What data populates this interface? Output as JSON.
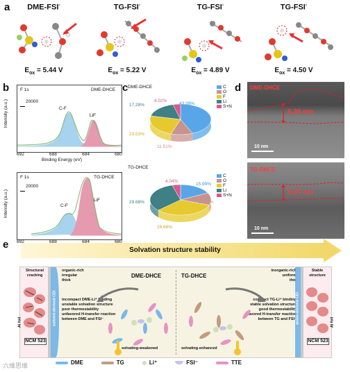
{
  "panel_labels": {
    "a": "a",
    "b": "b",
    "c": "c",
    "d": "d",
    "e": "e"
  },
  "panel_a": {
    "molecules": [
      {
        "title": "DME-FSI",
        "sup": "-",
        "eox_label": "E",
        "eox_sub": "ox",
        "eox_value": " = 5.44 V"
      },
      {
        "title": "TG-FSI",
        "sup": "-",
        "eox_label": "E",
        "eox_sub": "ox",
        "eox_value": " = 5.22 V"
      },
      {
        "title": "TG-FSI",
        "sup": "-",
        "eox_label": "E",
        "eox_sub": "ox",
        "eox_value": " = 4.89 V"
      },
      {
        "title": "TG-FSI",
        "sup": "-",
        "eox_label": "E",
        "eox_sub": "ox",
        "eox_value": " = 4.50 V"
      }
    ]
  },
  "panel_b": {
    "top": {
      "element": "F 1s",
      "sample": "DME-DHCE",
      "scale": "20000",
      "peak1": "C-F",
      "peak2": "LiF"
    },
    "bottom": {
      "element": "F 1s",
      "sample": "TG-DHCE",
      "scale": "20000",
      "peak1": "C-F",
      "peak2": "LiF"
    },
    "ylabel": "Intensity (a.u.)",
    "xlabel": "Binding Energy (eV)",
    "xticks": [
      "692",
      "688",
      "684",
      "680"
    ]
  },
  "chart_data": [
    {
      "type": "pie",
      "title": "DME-DHCE",
      "categories": [
        "C",
        "O",
        "F",
        "Li",
        "S+N"
      ],
      "values": [
        43.39,
        11.51,
        23.53,
        17.28,
        4.02
      ]
    },
    {
      "type": "pie",
      "title": "TG-DHCE",
      "categories": [
        "C",
        "O",
        "F",
        "Li",
        "S+N"
      ],
      "values": [
        15.99,
        11.89,
        29.68,
        29.68,
        4.04
      ]
    }
  ],
  "panel_c": {
    "top_title": "DME-DHCE",
    "bottom_title": "TG-DHCE",
    "top_labels": [
      "43.39%",
      "11.51%",
      "23.53%",
      "17.28%",
      "4.02%"
    ],
    "bottom_labels": [
      "15.99%",
      "11.89%",
      "29.68%",
      "29.68%",
      "4.04%"
    ],
    "legend": [
      "C",
      "O",
      "F",
      "Li",
      "S+N"
    ],
    "colors": [
      "#58a6e8",
      "#c7938d",
      "#e5c92f",
      "#3f7f86",
      "#d85a8c"
    ]
  },
  "panel_d": {
    "top": {
      "sample": "DME-DHCE",
      "thickness": "8.36 nm",
      "scale": "10 nm"
    },
    "bottom": {
      "sample": "TG-DHCE",
      "thickness": "5.07 nm",
      "scale": "10 nm"
    }
  },
  "panel_e": {
    "title": "Solvation structure stability",
    "left_top": "Structural cracking",
    "left_side": "Al foil",
    "left_cei": "solvent-derived CEI",
    "left_ncm": "NCM 523",
    "left_desc": [
      "organic-rich",
      "irregular",
      "thick"
    ],
    "left_name": "DME-DHCE",
    "left_points": [
      "incompact DME-Li⁺ binding",
      "unstable solvation structure",
      "poor thermostability",
      "unfavored H-transfer reaction",
      "between DME and FSI⁻"
    ],
    "left_bottom": "solvating-weakened",
    "right_name": "TG-DHCE",
    "right_desc": [
      "inorganic-rich",
      "uniform",
      "thin"
    ],
    "right_points": [
      "compact TG-Li⁺ binding",
      "stable solvation structure",
      "good thermostability",
      "favored H-transfer reaction",
      "between TG and FSI⁻"
    ],
    "right_bottom": "solvating-enhanced",
    "right_top": "Stable structure",
    "right_cei": "anion-derived CEI",
    "right_side": "Al foil",
    "right_ncm": "NCM 523",
    "legend": [
      "DME",
      "TG",
      "Li⁺",
      "FSI⁻",
      "TTE"
    ],
    "watermark": "六维思维"
  }
}
